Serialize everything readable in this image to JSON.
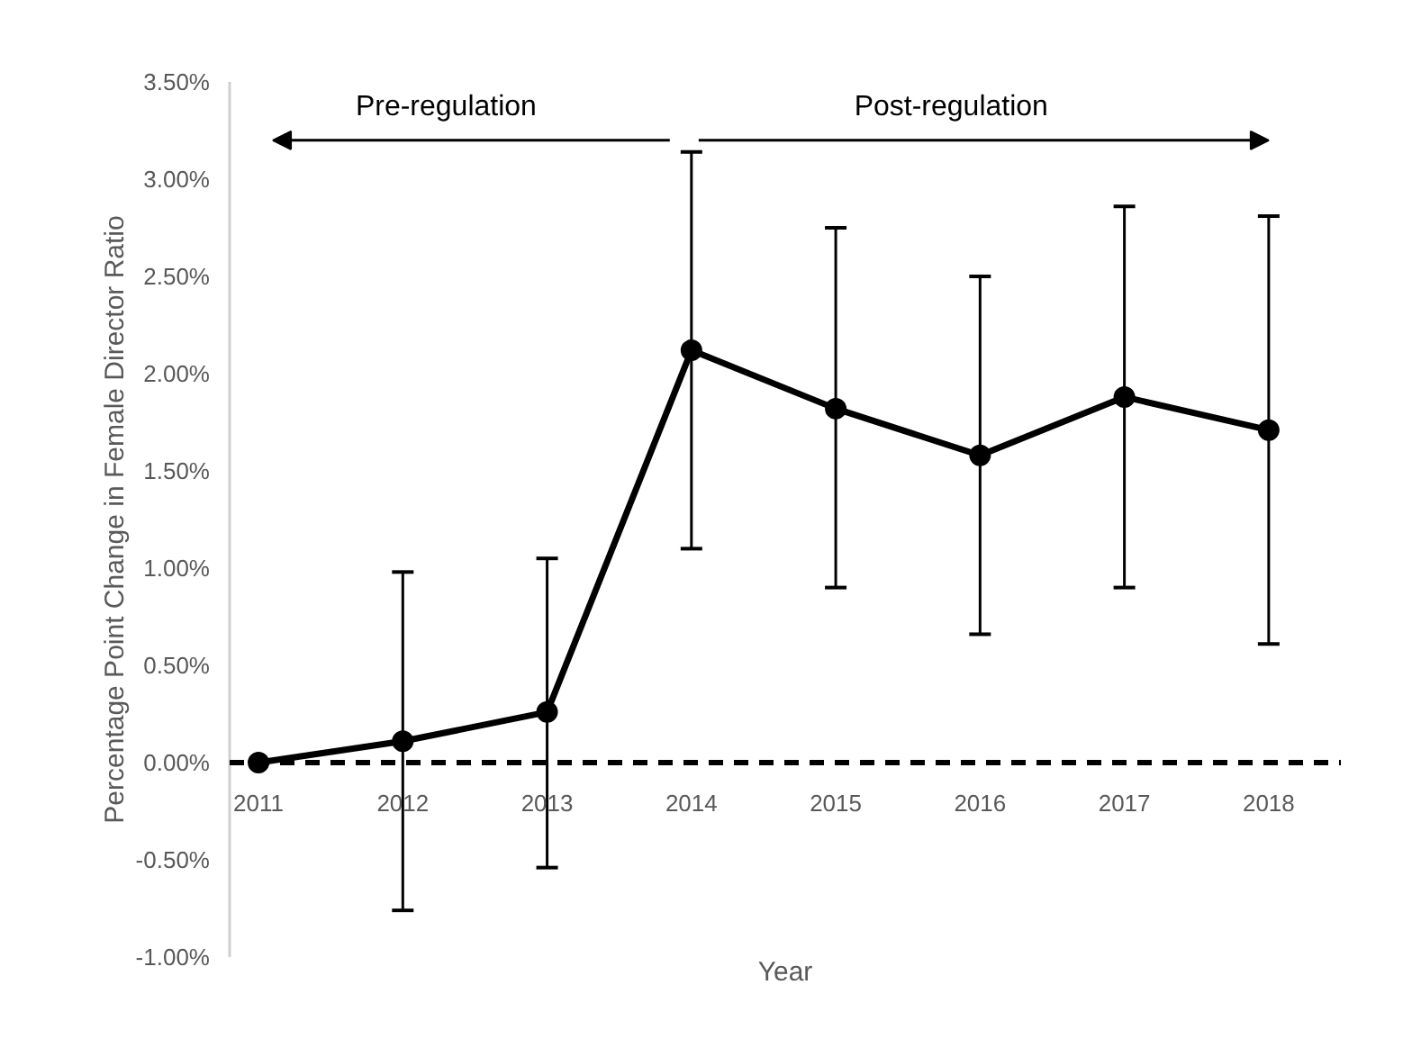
{
  "chart_data": {
    "type": "line",
    "xlabel": "Year",
    "ylabel": "Percentage Point Change in Female Director Ratio",
    "categories": [
      "2011",
      "2012",
      "2013",
      "2014",
      "2015",
      "2016",
      "2017",
      "2018"
    ],
    "series": [
      {
        "color": "#000000",
        "values": [
          0,
          0.11,
          0.26,
          2.12,
          1.82,
          1.58,
          1.88,
          1.71
        ],
        "errors": [
          null,
          [
            -0.76,
            0.98
          ],
          [
            -0.54,
            1.05
          ],
          [
            1.1,
            3.14
          ],
          [
            0.9,
            2.75
          ],
          [
            0.66,
            2.5
          ],
          [
            0.9,
            2.86
          ],
          [
            0.61,
            2.81
          ]
        ]
      }
    ],
    "ylim": [
      -1,
      3.5
    ],
    "yticks": [
      {
        "value": -1,
        "label": "-1.00%"
      },
      {
        "value": -0.5,
        "label": "-0.50%"
      },
      {
        "value": 0,
        "label": "0.00%"
      },
      {
        "value": 0.5,
        "label": "0.50%"
      },
      {
        "value": 1,
        "label": "1.00%"
      },
      {
        "value": 1.5,
        "label": "1.50%"
      },
      {
        "value": 2,
        "label": "2.00%"
      },
      {
        "value": 2.5,
        "label": "2.50%"
      },
      {
        "value": 3,
        "label": "3.00%"
      },
      {
        "value": 3.5,
        "label": "3.50%"
      }
    ],
    "ref_lines": [
      {
        "axis": "y",
        "value": 0,
        "color": "#000000",
        "line_style": "dashed"
      }
    ],
    "annotations": [
      "Pre-regulation",
      "Post-regulation"
    ],
    "grid": false,
    "marker": "circle",
    "line_style": "solid"
  }
}
